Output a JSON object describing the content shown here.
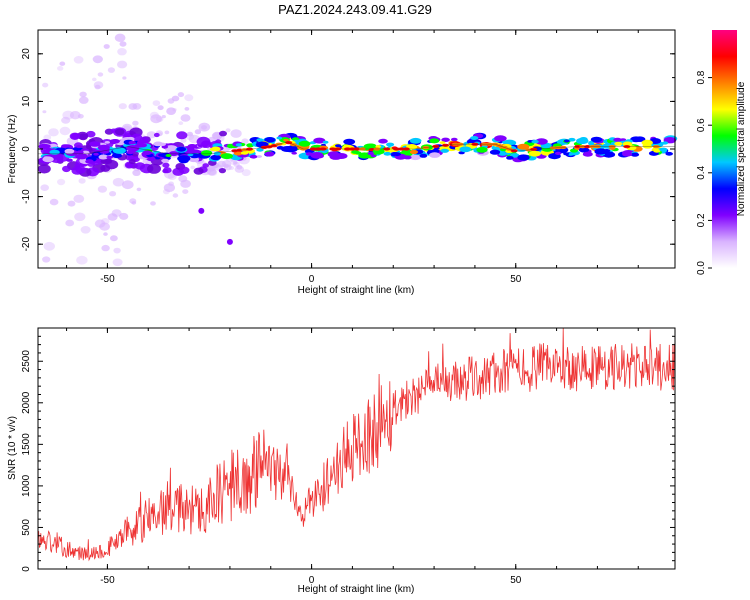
{
  "figure": {
    "title": "PAZ1.2024.243.09.41.G29"
  },
  "chart_data": [
    {
      "type": "heatmap",
      "xlabel": "Height of straight line (km)",
      "ylabel": "Frequency (Hz)",
      "xlim": [
        -67,
        89
      ],
      "ylim": [
        -25,
        25
      ],
      "x_ticks": [
        -50,
        0,
        50
      ],
      "y_ticks": [
        -20,
        -10,
        0,
        10,
        20
      ],
      "colorbar": {
        "label": "Normalized spectral amplitude",
        "range": [
          0,
          1
        ],
        "ticks": [
          "0.0",
          "0.2",
          "0.4",
          "0.6",
          "0.8"
        ],
        "tick_values": [
          0.0,
          0.2,
          0.4,
          0.6,
          0.8
        ],
        "colormap": [
          "#ffffff",
          "#d9b3ff",
          "#8000ff",
          "#0000ff",
          "#00c8ff",
          "#00ff00",
          "#ffff00",
          "#ff8000",
          "#ff0000",
          "#ff0080"
        ]
      },
      "ridge": {
        "x": [
          -67,
          -55,
          -45,
          -35,
          -25,
          -15,
          -10,
          -6,
          -2,
          5,
          15,
          25,
          35,
          45,
          50,
          55,
          65,
          75,
          89
        ],
        "y": [
          -1,
          -1,
          0.5,
          -1,
          -1,
          0,
          0.5,
          1.5,
          0,
          0,
          0,
          0,
          1,
          1,
          -0.5,
          0,
          0.5,
          0.5,
          0.5
        ]
      },
      "grid": false
    },
    {
      "type": "line",
      "xlabel": "Height of straight line (km)",
      "ylabel": "SNR (10 * v/v)",
      "xlim": [
        -67,
        89
      ],
      "ylim": [
        0,
        2900
      ],
      "x_ticks": [
        -50,
        0,
        50
      ],
      "y_ticks": [
        0,
        500,
        1000,
        1500,
        2000,
        2500
      ],
      "series": [
        {
          "color": "#ee3333",
          "x": [
            -67,
            -63,
            -58,
            -55,
            -50,
            -45,
            -40,
            -35,
            -30,
            -25,
            -20,
            -15,
            -10,
            -6,
            -3,
            0,
            3,
            6,
            10,
            15,
            20,
            25,
            30,
            35,
            40,
            45,
            50,
            55,
            60,
            65,
            70,
            75,
            80,
            85,
            89
          ],
          "y": [
            350,
            320,
            200,
            180,
            250,
            450,
            600,
            750,
            700,
            800,
            1000,
            1100,
            1200,
            1100,
            650,
            800,
            1000,
            1200,
            1450,
            1650,
            1950,
            2100,
            2200,
            2250,
            2300,
            2350,
            2400,
            2420,
            2450,
            2420,
            2430,
            2430,
            2440,
            2420,
            2440
          ]
        }
      ],
      "grid": false
    }
  ]
}
